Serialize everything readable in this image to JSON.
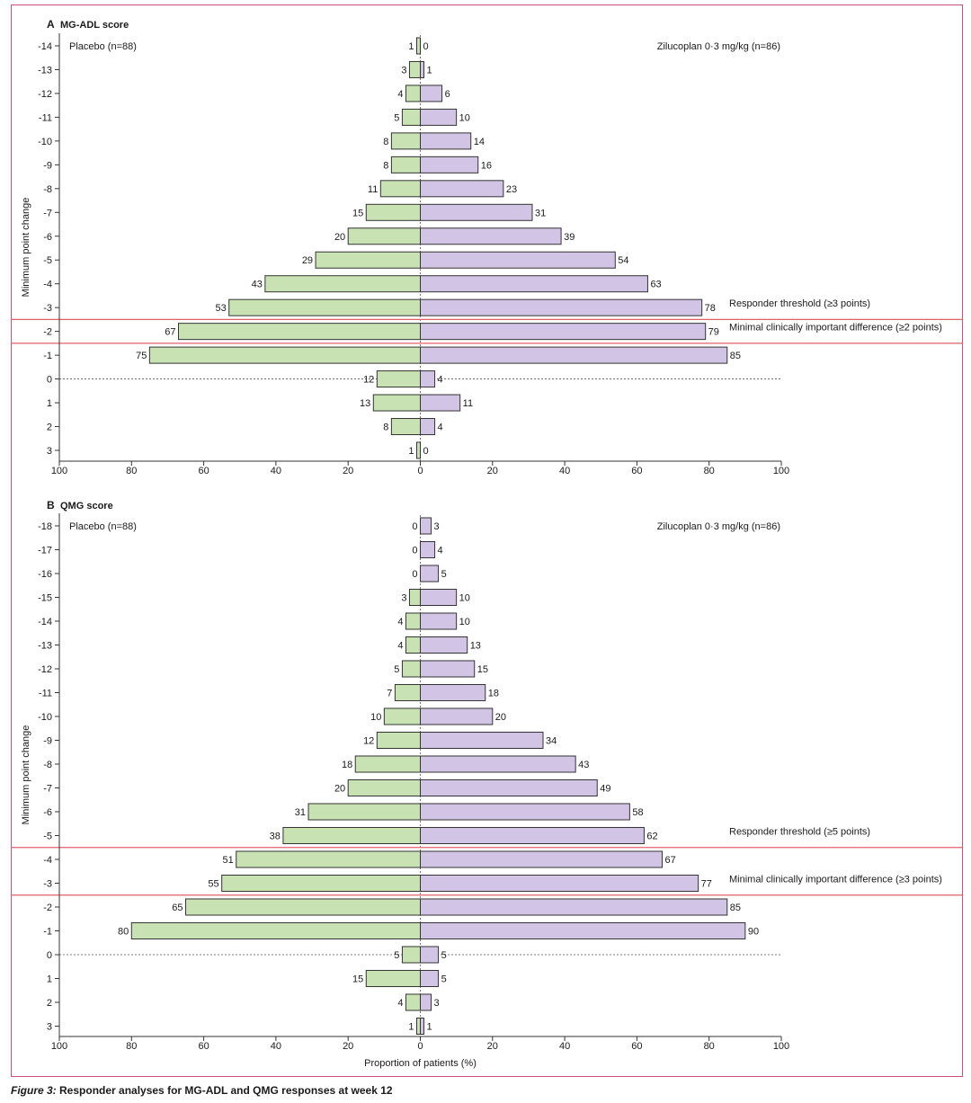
{
  "figure": {
    "caption_label": "Figure 3:",
    "caption_text": "Responder analyses for MG-ADL and QMG responses at week 12"
  },
  "colors": {
    "placebo_fill": "#c9e2b3",
    "zilucoplan_fill": "#d2c4e4",
    "bar_stroke": "#333333",
    "threshold_line": "#e25f6b",
    "frame": "#c8527a"
  },
  "chart_data": [
    {
      "type": "bar",
      "orientation": "horizontal-diverging",
      "panel_letter": "A",
      "title": "MG-ADL score",
      "ylabel": "Minimum point change",
      "xlabel": "",
      "xlim": [
        -100,
        100
      ],
      "x_ticks": [
        "100",
        "80",
        "60",
        "40",
        "20",
        "0",
        "20",
        "40",
        "60",
        "80",
        "100"
      ],
      "categories": [
        "-14",
        "-13",
        "-12",
        "-11",
        "-10",
        "-9",
        "-8",
        "-7",
        "-6",
        "-5",
        "-4",
        "-3",
        "-2",
        "-1",
        "0",
        "1",
        "2",
        "3"
      ],
      "series": [
        {
          "name": "Placebo (n=88)",
          "side": "left",
          "values": [
            1,
            3,
            4,
            5,
            8,
            8,
            11,
            15,
            20,
            29,
            43,
            53,
            67,
            75,
            12,
            13,
            8,
            1
          ]
        },
        {
          "name": "Zilucoplan 0·3 mg/kg (n=86)",
          "side": "right",
          "values": [
            0,
            1,
            6,
            10,
            14,
            16,
            23,
            31,
            39,
            54,
            63,
            78,
            79,
            85,
            4,
            11,
            4,
            0
          ]
        }
      ],
      "thresholds": [
        {
          "label": "Responder threshold  (≥3 points)",
          "category": "-3"
        },
        {
          "label": "Minimal clinically important difference (≥2 points)",
          "category": "-2"
        }
      ],
      "grid": false
    },
    {
      "type": "bar",
      "orientation": "horizontal-diverging",
      "panel_letter": "B",
      "title": "QMG score",
      "ylabel": "Minimum point change",
      "xlabel": "Proportion of patients (%)",
      "xlim": [
        -100,
        100
      ],
      "x_ticks": [
        "100",
        "80",
        "60",
        "40",
        "20",
        "0",
        "20",
        "40",
        "60",
        "80",
        "100"
      ],
      "categories": [
        "-18",
        "-17",
        "-16",
        "-15",
        "-14",
        "-13",
        "-12",
        "-11",
        "-10",
        "-9",
        "-8",
        "-7",
        "-6",
        "-5",
        "-4",
        "-3",
        "-2",
        "-1",
        "0",
        "1",
        "2",
        "3"
      ],
      "series": [
        {
          "name": "Placebo (n=88)",
          "side": "left",
          "values": [
            0,
            0,
            0,
            3,
            4,
            4,
            5,
            7,
            10,
            12,
            18,
            20,
            31,
            38,
            51,
            55,
            65,
            80,
            5,
            15,
            4,
            1
          ]
        },
        {
          "name": "Zilucoplan 0·3 mg/kg (n=86)",
          "side": "right",
          "values": [
            3,
            4,
            5,
            10,
            10,
            13,
            15,
            18,
            20,
            34,
            43,
            49,
            58,
            62,
            67,
            77,
            85,
            90,
            5,
            5,
            3,
            1
          ]
        }
      ],
      "thresholds": [
        {
          "label": "Responder threshold  (≥5 points)",
          "category": "-5"
        },
        {
          "label": "Minimal clinically important difference (≥3 points)",
          "category": "-3"
        }
      ],
      "grid": false
    }
  ]
}
